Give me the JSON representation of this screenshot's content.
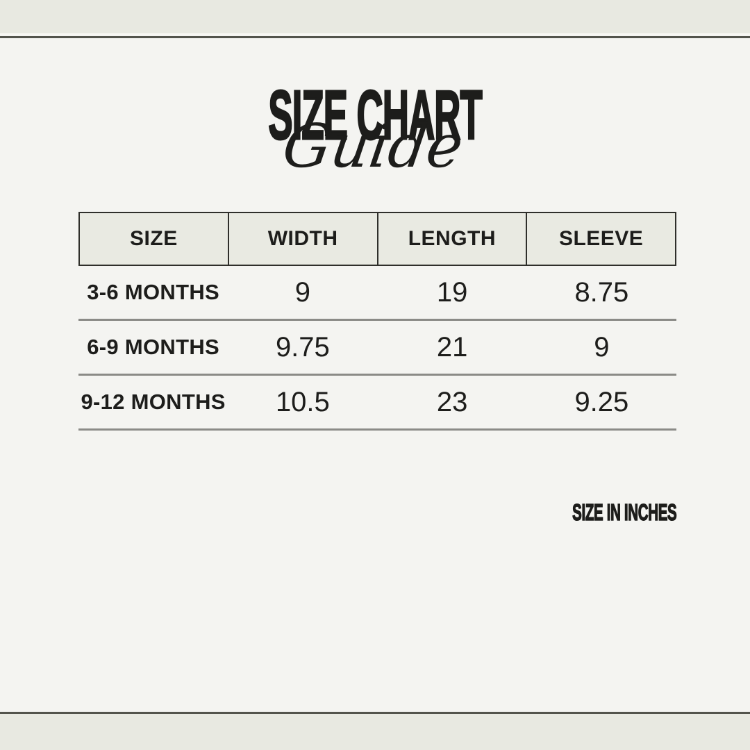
{
  "title": {
    "main": "SIZE CHART",
    "overlay": "Guide"
  },
  "table": {
    "headers": [
      "SIZE",
      "WIDTH",
      "LENGTH",
      "SLEEVE"
    ],
    "rows": [
      {
        "size": "3-6 MONTHS",
        "width": "9",
        "length": "19",
        "sleeve": "8.75"
      },
      {
        "size": "6-9 MONTHS",
        "width": "9.75",
        "length": "21",
        "sleeve": "9"
      },
      {
        "size": "9-12 MONTHS",
        "width": "10.5",
        "length": "23",
        "sleeve": "9.25"
      }
    ]
  },
  "footnote": "SIZE IN INCHES",
  "colors": {
    "background": "#f4f4f1",
    "band": "#e8e9e1",
    "band_highlight": "#f8f8f4",
    "band_line": "#53544c",
    "header_fill": "#e9eae2",
    "header_border": "#2f2f2b",
    "row_divider": "#8b8b87",
    "text": "#1d1d1b"
  },
  "chart_data": {
    "type": "table",
    "title": "SIZE CHART Guide",
    "unit_note": "SIZE IN INCHES",
    "columns": [
      "SIZE",
      "WIDTH",
      "LENGTH",
      "SLEEVE"
    ],
    "rows": [
      [
        "3-6 MONTHS",
        9,
        19,
        8.75
      ],
      [
        "6-9 MONTHS",
        9.75,
        21,
        9
      ],
      [
        "9-12 MONTHS",
        10.5,
        23,
        9.25
      ]
    ]
  }
}
